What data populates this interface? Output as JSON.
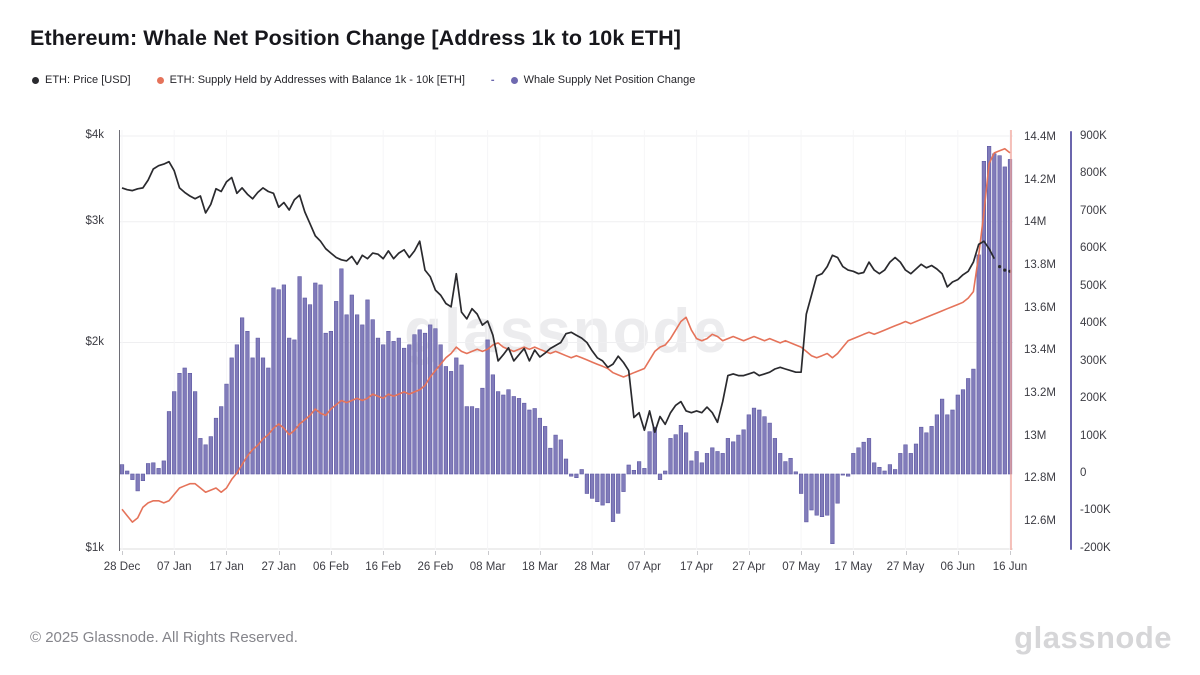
{
  "page": {
    "title": "Ethereum: Whale Net Position Change [Address 1k to 10k ETH]",
    "footer_copyright": "© 2025 Glassnode. All Rights Reserved.",
    "brand_wordmark": "glassnode",
    "watermark": "glassnode"
  },
  "legend": {
    "items": [
      {
        "label": "ETH: Price [USD]",
        "color": "#2a2a2e"
      },
      {
        "label": "ETH: Supply Held by Addresses with Balance 1k - 10k [ETH]",
        "color": "#e5735a"
      },
      {
        "label": "Whale Supply Net Position Change",
        "color": "#6f69b0"
      }
    ],
    "separator": "-"
  },
  "colors": {
    "price_line": "#2a2a2e",
    "supply_line": "#e5735a",
    "npc_bar_fill": "#817cba",
    "npc_bar_stroke": "#5f59a3",
    "npc_axis": "#6b66ad",
    "grid": "#efeff1",
    "axis_text": "#3c3c43",
    "end_marker": "#f2a89f"
  },
  "chart_data": {
    "type": "mixed",
    "title": "Ethereum: Whale Net Position Change [Address 1k to 10k ETH]",
    "frequency": "daily",
    "x_tick_labels": [
      "28 Dec",
      "07 Jan",
      "17 Jan",
      "27 Jan",
      "06 Feb",
      "16 Feb",
      "26 Feb",
      "08 Mar",
      "18 Mar",
      "28 Mar",
      "07 Apr",
      "17 Apr",
      "27 Apr",
      "07 May",
      "17 May",
      "27 May",
      "06 Jun",
      "16 Jun"
    ],
    "left_axis": {
      "title": "ETH price, USD",
      "scale": "log",
      "ticks": [
        "$4k",
        "$3k",
        "$2k",
        "$1k"
      ],
      "tick_values": [
        4000,
        3000,
        2000,
        1000
      ],
      "range": [
        1000,
        4000
      ]
    },
    "right_axis_supply": {
      "title": "Supply held, ETH",
      "scale": "linear",
      "ticks": [
        "14.4M",
        "14.2M",
        "14M",
        "13.8M",
        "13.6M",
        "13.4M",
        "13.2M",
        "13M",
        "12.8M",
        "12.6M"
      ],
      "tick_values": [
        14.4,
        14.2,
        14.0,
        13.8,
        13.6,
        13.4,
        13.2,
        13.0,
        12.8,
        12.6
      ],
      "unit": "M ETH"
    },
    "right_axis_npc": {
      "title": "Net position change, ETH",
      "scale": "linear",
      "ticks": [
        "900K",
        "800K",
        "700K",
        "600K",
        "500K",
        "400K",
        "300K",
        "200K",
        "100K",
        "0",
        "-100K",
        "-200K"
      ],
      "tick_values": [
        900,
        800,
        700,
        600,
        500,
        400,
        300,
        200,
        100,
        0,
        -100,
        -200
      ],
      "unit": "K ETH"
    },
    "dates": [
      "28 Dec",
      "29 Dec",
      "30 Dec",
      "31 Dec",
      "01 Jan",
      "02 Jan",
      "03 Jan",
      "04 Jan",
      "05 Jan",
      "06 Jan",
      "07 Jan",
      "08 Jan",
      "09 Jan",
      "10 Jan",
      "11 Jan",
      "12 Jan",
      "13 Jan",
      "14 Jan",
      "15 Jan",
      "16 Jan",
      "17 Jan",
      "18 Jan",
      "19 Jan",
      "20 Jan",
      "21 Jan",
      "22 Jan",
      "23 Jan",
      "24 Jan",
      "25 Jan",
      "26 Jan",
      "27 Jan",
      "28 Jan",
      "29 Jan",
      "30 Jan",
      "31 Jan",
      "01 Feb",
      "02 Feb",
      "03 Feb",
      "04 Feb",
      "05 Feb",
      "06 Feb",
      "07 Feb",
      "08 Feb",
      "09 Feb",
      "10 Feb",
      "11 Feb",
      "12 Feb",
      "13 Feb",
      "14 Feb",
      "15 Feb",
      "16 Feb",
      "17 Feb",
      "18 Feb",
      "19 Feb",
      "20 Feb",
      "21 Feb",
      "22 Feb",
      "23 Feb",
      "24 Feb",
      "25 Feb",
      "26 Feb",
      "27 Feb",
      "28 Feb",
      "01 Mar",
      "02 Mar",
      "03 Mar",
      "04 Mar",
      "05 Mar",
      "06 Mar",
      "07 Mar",
      "08 Mar",
      "09 Mar",
      "10 Mar",
      "11 Mar",
      "12 Mar",
      "13 Mar",
      "14 Mar",
      "15 Mar",
      "16 Mar",
      "17 Mar",
      "18 Mar",
      "19 Mar",
      "20 Mar",
      "21 Mar",
      "22 Mar",
      "23 Mar",
      "24 Mar",
      "25 Mar",
      "26 Mar",
      "27 Mar",
      "28 Mar",
      "29 Mar",
      "30 Mar",
      "31 Mar",
      "01 Apr",
      "02 Apr",
      "03 Apr",
      "04 Apr",
      "05 Apr",
      "06 Apr",
      "07 Apr",
      "08 Apr",
      "09 Apr",
      "10 Apr",
      "11 Apr",
      "12 Apr",
      "13 Apr",
      "14 Apr",
      "15 Apr",
      "16 Apr",
      "17 Apr",
      "18 Apr",
      "19 Apr",
      "20 Apr",
      "21 Apr",
      "22 Apr",
      "23 Apr",
      "24 Apr",
      "25 Apr",
      "26 Apr",
      "27 Apr",
      "28 Apr",
      "29 Apr",
      "30 Apr",
      "01 May",
      "02 May",
      "03 May",
      "04 May",
      "05 May",
      "06 May",
      "07 May",
      "08 May",
      "09 May",
      "10 May",
      "11 May",
      "12 May",
      "13 May",
      "14 May",
      "15 May",
      "16 May",
      "17 May",
      "18 May",
      "19 May",
      "20 May",
      "21 May",
      "22 May",
      "23 May",
      "24 May",
      "25 May",
      "26 May",
      "27 May",
      "28 May",
      "29 May",
      "30 May",
      "31 May",
      "01 Jun",
      "02 Jun",
      "03 Jun",
      "04 Jun",
      "05 Jun",
      "06 Jun",
      "07 Jun",
      "08 Jun",
      "09 Jun",
      "10 Jun",
      "11 Jun",
      "12 Jun",
      "13 Jun",
      "14 Jun",
      "15 Jun",
      "16 Jun"
    ],
    "series": [
      {
        "name": "ETH: Price [USD]",
        "type": "line",
        "axis": "price",
        "color": "#2a2a2e",
        "unit": "USD",
        "values": [
          3360,
          3340,
          3330,
          3350,
          3360,
          3450,
          3580,
          3620,
          3640,
          3670,
          3560,
          3360,
          3310,
          3270,
          3240,
          3270,
          3090,
          3180,
          3350,
          3320,
          3430,
          3480,
          3300,
          3360,
          3290,
          3240,
          3310,
          3360,
          3320,
          3300,
          3150,
          3200,
          3120,
          3230,
          3280,
          3100,
          2980,
          2860,
          2810,
          2740,
          2700,
          2660,
          2640,
          2630,
          2670,
          2600,
          2680,
          2650,
          2700,
          2690,
          2650,
          2720,
          2650,
          2700,
          2730,
          2660,
          2720,
          2810,
          2550,
          2495,
          2385,
          2345,
          2280,
          2255,
          2520,
          2215,
          2165,
          2240,
          2200,
          2120,
          2150,
          2050,
          1880,
          1920,
          1965,
          1880,
          1920,
          1960,
          1880,
          1950,
          1905,
          1930,
          1960,
          1980,
          2000,
          2060,
          2070,
          2050,
          2030,
          2000,
          1945,
          1900,
          1880,
          1840,
          1860,
          1910,
          1870,
          1820,
          1555,
          1580,
          1490,
          1590,
          1480,
          1560,
          1520,
          1580,
          1620,
          1640,
          1590,
          1580,
          1590,
          1580,
          1610,
          1580,
          1530,
          1640,
          1790,
          1800,
          1790,
          1790,
          1800,
          1810,
          1790,
          1800,
          1810,
          1830,
          1840,
          1830,
          1820,
          1810,
          1810,
          2200,
          2345,
          2500,
          2520,
          2580,
          2680,
          2660,
          2580,
          2550,
          2540,
          2520,
          2530,
          2620,
          2550,
          2520,
          2550,
          2620,
          2660,
          2620,
          2550,
          2520,
          2560,
          2600,
          2570,
          2590,
          2560,
          2520,
          2410,
          2450,
          2470,
          2510,
          2540,
          2620,
          2780,
          2810,
          2740,
          2650,
          2580,
          2550,
          2540
        ]
      },
      {
        "name": "ETH: Supply Held by Addresses with Balance 1k - 10k [ETH]",
        "type": "line",
        "axis": "supply",
        "color": "#e5735a",
        "unit": "M ETH",
        "values": [
          12.66,
          12.63,
          12.6,
          12.62,
          12.67,
          12.69,
          12.7,
          12.7,
          12.69,
          12.7,
          12.73,
          12.76,
          12.77,
          12.78,
          12.78,
          12.76,
          12.74,
          12.75,
          12.76,
          12.74,
          12.76,
          12.8,
          12.83,
          12.87,
          12.91,
          12.94,
          12.96,
          12.99,
          13.01,
          13.04,
          13.06,
          13.04,
          13.01,
          13.03,
          13.06,
          13.08,
          13.1,
          13.13,
          13.11,
          13.1,
          13.13,
          13.15,
          13.17,
          13.16,
          13.17,
          13.18,
          13.17,
          13.18,
          13.2,
          13.19,
          13.18,
          13.2,
          13.19,
          13.2,
          13.21,
          13.2,
          13.21,
          13.22,
          13.24,
          13.28,
          13.31,
          13.34,
          13.37,
          13.39,
          13.42,
          13.4,
          13.39,
          13.4,
          13.41,
          13.4,
          13.41,
          13.43,
          13.44,
          13.42,
          13.41,
          13.4,
          13.41,
          13.42,
          13.41,
          13.42,
          13.41,
          13.4,
          13.39,
          13.4,
          13.39,
          13.38,
          13.37,
          13.38,
          13.37,
          13.36,
          13.35,
          13.34,
          13.33,
          13.32,
          13.3,
          13.29,
          13.28,
          13.29,
          13.3,
          13.31,
          13.32,
          13.36,
          13.4,
          13.42,
          13.43,
          13.46,
          13.5,
          13.54,
          13.56,
          13.5,
          13.46,
          13.45,
          13.46,
          13.48,
          13.47,
          13.45,
          13.46,
          13.47,
          13.46,
          13.45,
          13.46,
          13.47,
          13.46,
          13.45,
          13.46,
          13.45,
          13.44,
          13.45,
          13.44,
          13.43,
          13.42,
          13.4,
          13.38,
          13.37,
          13.38,
          13.39,
          13.37,
          13.39,
          13.42,
          13.45,
          13.46,
          13.47,
          13.48,
          13.49,
          13.48,
          13.49,
          13.5,
          13.51,
          13.52,
          13.53,
          13.54,
          13.53,
          13.54,
          13.55,
          13.56,
          13.57,
          13.58,
          13.59,
          13.6,
          13.61,
          13.62,
          13.63,
          13.65,
          13.68,
          13.85,
          14.05,
          14.28,
          14.33,
          14.34,
          14.35,
          14.33
        ]
      },
      {
        "name": "Whale Supply Net Position Change",
        "type": "bar",
        "axis": "npc",
        "color": "#817cba",
        "stroke": "#5f59a3",
        "unit": "K ETH",
        "values": [
          25,
          8,
          -15,
          -45,
          -18,
          28,
          30,
          15,
          35,
          167,
          220,
          269,
          283,
          269,
          220,
          95,
          78,
          100,
          149,
          180,
          240,
          310,
          345,
          417,
          381,
          310,
          363,
          310,
          283,
          497,
          492,
          505,
          363,
          358,
          527,
          470,
          452,
          510,
          505,
          376,
          381,
          461,
          548,
          425,
          478,
          425,
          398,
          465,
          412,
          363,
          345,
          381,
          354,
          363,
          336,
          345,
          372,
          385,
          376,
          398,
          388,
          345,
          287,
          274,
          310,
          291,
          180,
          180,
          175,
          229,
          358,
          265,
          220,
          211,
          225,
          207,
          202,
          189,
          171,
          175,
          149,
          127,
          69,
          104,
          91,
          40,
          -6,
          -10,
          12,
          -52,
          -65,
          -74,
          -83,
          -77,
          -127,
          -105,
          -47,
          24,
          10,
          33,
          15,
          113,
          125,
          -15,
          8,
          95,
          105,
          130,
          110,
          35,
          60,
          30,
          55,
          70,
          60,
          55,
          95,
          86,
          104,
          118,
          158,
          176,
          171,
          153,
          136,
          95,
          55,
          33,
          42,
          6,
          -52,
          -128,
          -96,
          -110,
          -114,
          -110,
          -186,
          -78,
          -3,
          -6,
          55,
          70,
          85,
          95,
          30,
          18,
          8,
          25,
          12,
          55,
          78,
          55,
          80,
          125,
          110,
          127,
          158,
          200,
          158,
          171,
          211,
          225,
          255,
          280,
          585,
          835,
          875,
          855,
          850,
          820,
          840
        ]
      }
    ],
    "end_marker_color": "#f2a89f",
    "grid": true,
    "legend_position": "top-left"
  }
}
